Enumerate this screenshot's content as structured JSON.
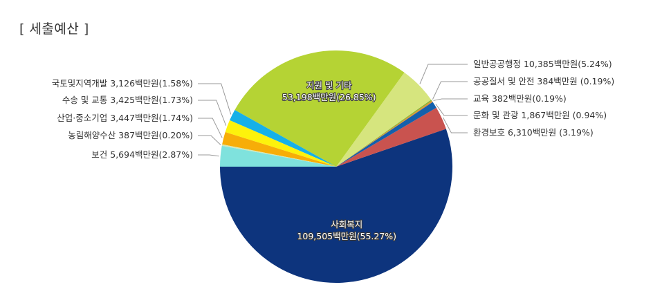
{
  "page": {
    "title": "[ 세출예산 ]"
  },
  "chart_data": {
    "type": "pie",
    "title": "",
    "slices": [
      {
        "name": "사회복지",
        "label": "사회복지",
        "amount": "109,505백만원",
        "value": 55.27,
        "color": "#0d347d",
        "text": "사회복지 109,505백만원(55.27%)"
      },
      {
        "name": "환경보호",
        "label": "환경보호",
        "amount": "6,310백만원",
        "value": 3.19,
        "color": "#c9534f",
        "text": "환경보호 6,310백만원 (3.19%)"
      },
      {
        "name": "문화 및 관광",
        "label": "문화 및 관광",
        "amount": "1,867백만원",
        "value": 0.94,
        "color": "#1460ac",
        "text": "문화 및 관광 1,867백만원 (0.94%)"
      },
      {
        "name": "교육",
        "label": "교육",
        "amount": "382백만원",
        "value": 0.19,
        "color": "#e49030",
        "text": "교육 382백만원(0.19%)"
      },
      {
        "name": "공공질서 및 안전",
        "label": "공공질서 및 안전",
        "amount": "384백만원",
        "value": 0.19,
        "color": "#8fb437",
        "text": "공공질서 및 안전 384백만원 (0.19%)"
      },
      {
        "name": "일반공공행정",
        "label": "일반공공행정",
        "amount": "10,385백만원",
        "value": 5.24,
        "color": "#d6e57e",
        "text": "일반공공행정 10,385백만원(5.24%)"
      },
      {
        "name": "지원 및 기타",
        "label": "지원 및 기타",
        "amount": "53,198백만원",
        "value": 26.85,
        "color": "#b5d334",
        "text": "지원 및 기타 53,198백만원(26.85%)"
      },
      {
        "name": "국토및지역개발",
        "label": "국토및지역개발",
        "amount": "3,126백만원",
        "value": 1.58,
        "color": "#16b0e8",
        "text": "국토및지역개발 3,126백만원(1.58%)"
      },
      {
        "name": "수송 및 교통",
        "label": "수송 및 교통",
        "amount": "3,425백만원",
        "value": 1.73,
        "color": "#fdf20c",
        "text": "수송 및 교통 3,425백만원(1.73%)"
      },
      {
        "name": "산업·중소기업",
        "label": "산업·중소기업",
        "amount": "3,447백만원",
        "value": 1.74,
        "color": "#f7ad08",
        "text": "산업·중소기업 3,447백만원(1.74%)"
      },
      {
        "name": "농림해양수산",
        "label": "농림해양수산",
        "amount": "387백만원",
        "value": 0.2,
        "color": "#d3e8b8",
        "text": "농림해양수산 387백만원(0.20%)"
      },
      {
        "name": "보건",
        "label": "보건",
        "amount": "5,694백만원",
        "value": 2.87,
        "color": "#7fe2dd",
        "text": "보건 5,694백만원(2.87%)"
      }
    ],
    "legend": "none",
    "start_angle": "west, clockwise from 보건 ending at the 9 o'clock position"
  }
}
